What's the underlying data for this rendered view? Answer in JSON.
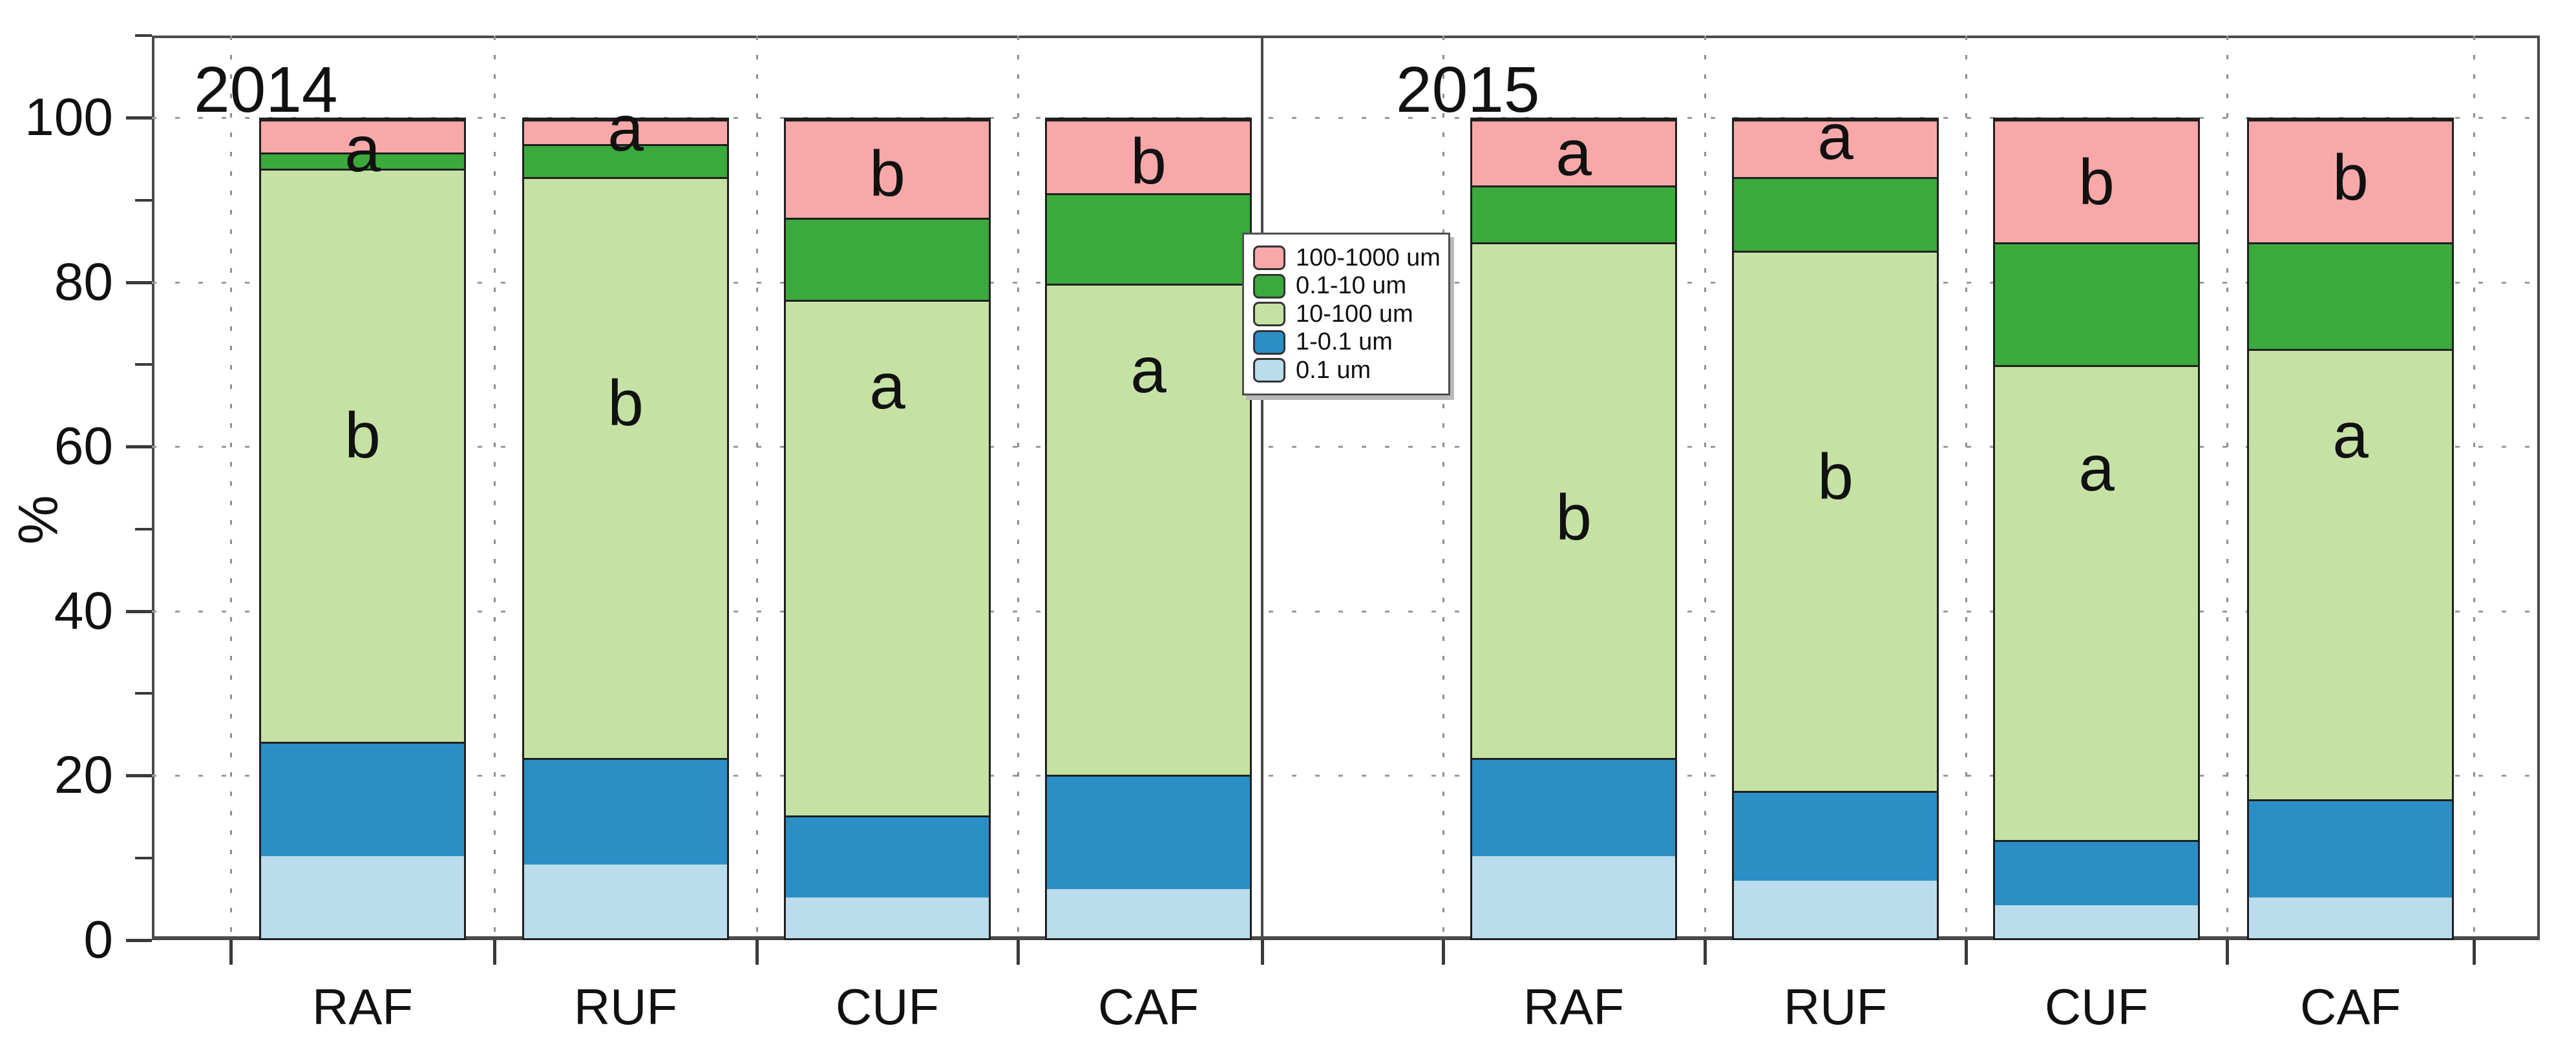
{
  "chart_data": {
    "type": "bar",
    "stacked": true,
    "ylabel": "%",
    "ylim": [
      0,
      110
    ],
    "yticks": [
      0,
      20,
      40,
      60,
      80,
      100
    ],
    "yticks_minor": [
      10,
      30,
      50,
      70,
      90,
      110
    ],
    "grid": true,
    "legend": {
      "position": "center-between-panels",
      "entries": [
        {
          "label": "100-1000 um",
          "color": "#F8A8A8"
        },
        {
          "label": "0.1-10 um",
          "color": "#3BA93B"
        },
        {
          "label": "10-100 um",
          "color": "#C5E2A4"
        },
        {
          "label": "1-0.1 um",
          "color": "#2B8FC5"
        },
        {
          "label": "0.1 um",
          "color": "#BADCEC"
        }
      ]
    },
    "segment_order_bottom_to_top": [
      "0.1 um",
      "1-0.1 um",
      "10-100 um",
      "0.1-10 um",
      "100-1000 um"
    ],
    "panels": [
      {
        "title": "2014",
        "categories": [
          "RAF",
          "RUF",
          "CUF",
          "CAF"
        ],
        "series": [
          {
            "name": "0.1 um",
            "values": [
              10,
              9,
              5,
              6
            ]
          },
          {
            "name": "1-0.1 um",
            "values": [
              14,
              13,
              10,
              14
            ]
          },
          {
            "name": "10-100 um",
            "values": [
              70,
              71,
              63,
              60
            ]
          },
          {
            "name": "0.1-10 um",
            "values": [
              2,
              4,
              10,
              11
            ]
          },
          {
            "name": "100-1000 um",
            "values": [
              4,
              3,
              12,
              9
            ]
          }
        ],
        "annotations": [
          [
            {
              "text": "a",
              "y": 96
            },
            {
              "text": "b",
              "y": 61
            }
          ],
          [
            {
              "text": "a",
              "y": 98.5
            },
            {
              "text": "b",
              "y": 65
            }
          ],
          [
            {
              "text": "b",
              "y": 93
            },
            {
              "text": "a",
              "y": 67
            }
          ],
          [
            {
              "text": "b",
              "y": 94.5
            },
            {
              "text": "a",
              "y": 69
            }
          ]
        ]
      },
      {
        "title": "2015",
        "categories": [
          "RAF",
          "RUF",
          "CUF",
          "CAF"
        ],
        "series": [
          {
            "name": "0.1 um",
            "values": [
              10,
              7,
              4,
              5
            ]
          },
          {
            "name": "1-0.1 um",
            "values": [
              12,
              11,
              8,
              12
            ]
          },
          {
            "name": "10-100 um",
            "values": [
              63,
              66,
              58,
              55
            ]
          },
          {
            "name": "0.1-10 um",
            "values": [
              7,
              9,
              15,
              13
            ]
          },
          {
            "name": "100-1000 um",
            "values": [
              8,
              7,
              15,
              15
            ]
          }
        ],
        "annotations": [
          [
            {
              "text": "a",
              "y": 95.5
            },
            {
              "text": "b",
              "y": 51
            }
          ],
          [
            {
              "text": "a",
              "y": 97.5
            },
            {
              "text": "b",
              "y": 56
            }
          ],
          [
            {
              "text": "b",
              "y": 92
            },
            {
              "text": "a",
              "y": 57
            }
          ],
          [
            {
              "text": "b",
              "y": 92.5
            },
            {
              "text": "a",
              "y": 61
            }
          ]
        ]
      }
    ]
  },
  "colors": {
    "axis": "#4a4a4a",
    "grid": "#999999",
    "bar_border": "#1f1f1f",
    "text": "#111111",
    "background": "#ffffff"
  }
}
